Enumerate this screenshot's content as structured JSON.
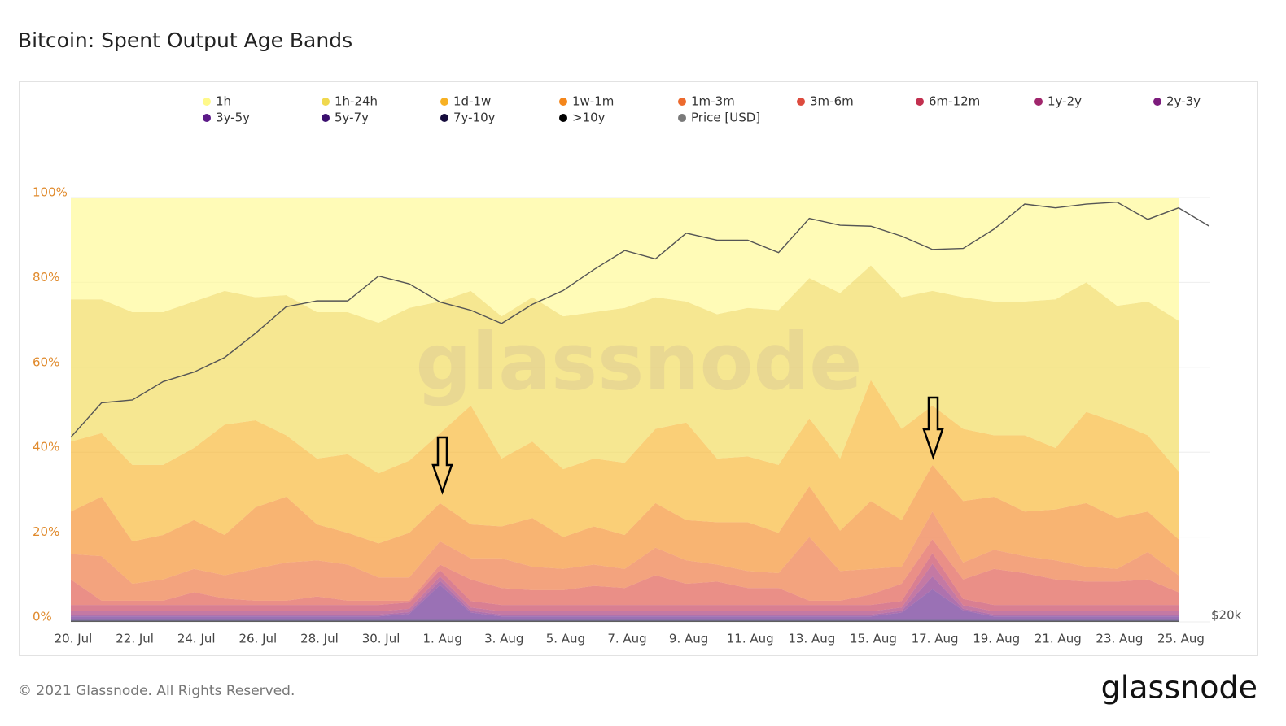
{
  "chart_data": {
    "type": "area",
    "stacked": true,
    "title": "Bitcoin: Spent Output Age Bands",
    "watermark": "glassnode",
    "footer": "© 2021 Glassnode. All Rights Reserved.",
    "brand": "glassnode",
    "categories": [
      "20. Jul",
      null,
      "22. Jul",
      null,
      "24. Jul",
      null,
      "26. Jul",
      null,
      "28. Jul",
      null,
      "30. Jul",
      null,
      "1. Aug",
      null,
      "3. Aug",
      null,
      "5. Aug",
      null,
      "7. Aug",
      null,
      "9. Aug",
      null,
      "11. Aug",
      null,
      "13. Aug",
      null,
      "15. Aug",
      null,
      "17. Aug",
      null,
      "19. Aug",
      null,
      "21. Aug",
      null,
      "23. Aug",
      null,
      "25. Aug",
      null
    ],
    "ylim": [
      0,
      100
    ],
    "yticks": [
      {
        "value": 0,
        "label": "0%"
      },
      {
        "value": 20,
        "label": "20%"
      },
      {
        "value": 40,
        "label": "40%"
      },
      {
        "value": 60,
        "label": "60%"
      },
      {
        "value": 80,
        "label": "80%"
      },
      {
        "value": 100,
        "label": "100%"
      }
    ],
    "y2lim": [
      20000,
      50000
    ],
    "y2log": true,
    "y2ticks": [
      {
        "value": 20000,
        "label": "$20k"
      }
    ],
    "grid": true,
    "series": [
      {
        "name": "1h",
        "color": "#fff98a",
        "values": [
          24,
          24,
          27,
          27,
          24.5,
          22,
          23.5,
          23,
          27,
          27,
          29.5,
          26,
          24.5,
          22,
          28,
          23.5,
          28,
          27,
          26,
          23.5,
          24.5,
          27.5,
          26,
          26.5,
          19,
          22.5,
          16,
          23.5,
          22,
          23.5,
          24.5,
          24.5,
          24,
          20,
          25.5,
          24.5,
          29,
          null
        ]
      },
      {
        "name": "1h-24h",
        "color": "#f0d84e",
        "values": [
          33.5,
          31.5,
          36,
          36,
          34.5,
          31.5,
          29,
          33,
          34.5,
          33.5,
          35.5,
          36,
          31,
          27,
          33.5,
          34,
          36,
          34.5,
          36.5,
          31,
          28.5,
          34,
          35,
          36.5,
          33,
          39,
          27,
          31,
          27,
          31,
          31.5,
          31.5,
          35,
          30.5,
          27.5,
          31.5,
          35.5,
          null
        ]
      },
      {
        "name": "1d-1w",
        "color": "#f7b124",
        "values": [
          16.5,
          15,
          18,
          16.5,
          17,
          26,
          20.5,
          14.5,
          15.5,
          18.5,
          16.5,
          17,
          16.5,
          28,
          16,
          18,
          16,
          16,
          17,
          17.5,
          23,
          15,
          15.5,
          16,
          16,
          17,
          28.5,
          21.5,
          14,
          17,
          14.5,
          18,
          14.5,
          21.5,
          22.5,
          18,
          16,
          null
        ]
      },
      {
        "name": "1w-1m",
        "color": "#f4861b",
        "values": [
          10,
          14,
          10,
          10.5,
          11.5,
          9.5,
          14.5,
          15.5,
          8.5,
          7.5,
          8,
          10.5,
          9,
          8,
          7.5,
          11.5,
          7.5,
          9,
          8,
          10.5,
          9.5,
          10,
          11.5,
          9.5,
          12,
          9.5,
          16,
          11,
          11,
          14.5,
          12.5,
          10.5,
          12,
          15,
          12,
          9.5,
          8.5,
          null
        ]
      },
      {
        "name": "1m-3m",
        "color": "#ec6a2e",
        "values": [
          6,
          10.5,
          4,
          5,
          5.5,
          5.5,
          7.5,
          9,
          8.5,
          8.5,
          5.5,
          5.5,
          5.5,
          5,
          7,
          5.5,
          5,
          5,
          4.5,
          6.5,
          5.5,
          4,
          4,
          3.5,
          15,
          7,
          6,
          4,
          6.5,
          4,
          4.5,
          4,
          4.5,
          3.5,
          3,
          6.5,
          4,
          null
        ]
      },
      {
        "name": "3m-6m",
        "color": "#dd4b3e",
        "values": [
          6,
          1,
          1,
          1,
          3,
          1.5,
          1,
          1,
          2,
          1,
          1,
          0.4,
          1.3,
          5.1,
          4,
          3.5,
          3.5,
          4.5,
          4,
          7,
          5,
          5.5,
          4,
          4,
          1,
          1,
          2.5,
          4.1,
          3.3,
          4.6,
          8.5,
          7.5,
          6,
          5.5,
          5.5,
          6,
          3,
          null
        ]
      },
      {
        "name": "6m-12m",
        "color": "#c2304f",
        "values": [
          1.5,
          1.5,
          1.5,
          1.5,
          1.5,
          1.5,
          1.5,
          1.5,
          1.5,
          1.5,
          1.5,
          1.5,
          1.5,
          1.5,
          1.5,
          1.5,
          1.5,
          1.5,
          1.5,
          1.5,
          1.5,
          1.5,
          1.5,
          1.5,
          1.5,
          1.5,
          1.5,
          1.5,
          2.5,
          1.5,
          1.5,
          1.5,
          1.5,
          1.5,
          1.5,
          1.5,
          1.5,
          null
        ]
      },
      {
        "name": "1y-2y",
        "color": "#a0266c",
        "values": [
          0.8,
          0.8,
          0.8,
          0.8,
          0.8,
          0.8,
          0.8,
          0.8,
          0.8,
          0.8,
          0.8,
          0.8,
          1,
          0.8,
          0.8,
          0.8,
          0.8,
          0.8,
          0.8,
          0.8,
          0.8,
          0.8,
          0.8,
          0.8,
          0.8,
          0.8,
          0.8,
          0.8,
          3,
          0.8,
          0.8,
          0.8,
          0.8,
          0.8,
          0.8,
          0.8,
          0.8,
          null
        ]
      },
      {
        "name": "2y-3y",
        "color": "#7c1c7c",
        "values": [
          0.4,
          0.4,
          0.4,
          0.4,
          0.4,
          0.4,
          0.4,
          0.4,
          0.4,
          0.4,
          0.4,
          0.4,
          1,
          0.4,
          0.4,
          0.4,
          0.4,
          0.4,
          0.4,
          0.4,
          0.4,
          0.4,
          0.4,
          0.4,
          0.4,
          0.4,
          0.4,
          0.4,
          3,
          0.4,
          0.4,
          0.4,
          0.4,
          0.4,
          0.4,
          0.4,
          0.4,
          null
        ]
      },
      {
        "name": "3y-5y",
        "color": "#5c1a88",
        "values": [
          0.6,
          0.6,
          0.6,
          0.6,
          0.6,
          0.6,
          0.6,
          0.6,
          0.6,
          0.6,
          0.6,
          1.2,
          8,
          1.5,
          0.6,
          0.6,
          0.6,
          0.6,
          0.6,
          0.6,
          0.6,
          0.6,
          0.6,
          0.6,
          0.6,
          0.6,
          0.6,
          1.5,
          7,
          2,
          0.6,
          0.6,
          0.6,
          0.6,
          0.6,
          0.6,
          0.6,
          null
        ]
      },
      {
        "name": "5y-7y",
        "color": "#3a0f6e",
        "values": [
          0.3,
          0.3,
          0.3,
          0.3,
          0.3,
          0.3,
          0.3,
          0.3,
          0.3,
          0.3,
          0.3,
          0.3,
          0.3,
          0.3,
          0.3,
          0.3,
          0.3,
          0.3,
          0.3,
          0.3,
          0.3,
          0.3,
          0.3,
          0.3,
          0.3,
          0.3,
          0.3,
          0.3,
          0.3,
          0.3,
          0.3,
          0.3,
          0.3,
          0.3,
          0.3,
          0.3,
          0.3,
          null
        ]
      },
      {
        "name": "7y-10y",
        "color": "#150c3c",
        "values": [
          0.2,
          0.2,
          0.2,
          0.2,
          0.2,
          0.2,
          0.2,
          0.2,
          0.2,
          0.2,
          0.2,
          0.2,
          0.2,
          0.2,
          0.2,
          0.2,
          0.2,
          0.2,
          0.2,
          0.2,
          0.2,
          0.2,
          0.2,
          0.2,
          0.2,
          0.2,
          0.2,
          0.2,
          0.2,
          0.2,
          0.2,
          0.2,
          0.2,
          0.2,
          0.2,
          0.2,
          0.2,
          null
        ]
      },
      {
        "name": ">10y",
        "color": "#000000",
        "values": [
          0.2,
          0.2,
          0.2,
          0.2,
          0.2,
          0.2,
          0.2,
          0.2,
          0.2,
          0.2,
          0.2,
          0.2,
          0.2,
          0.2,
          0.2,
          0.2,
          0.2,
          0.2,
          0.2,
          0.2,
          0.2,
          0.2,
          0.2,
          0.2,
          0.2,
          0.2,
          0.2,
          0.2,
          0.2,
          0.2,
          0.2,
          0.2,
          0.2,
          0.2,
          0.2,
          0.2,
          0.2,
          null
        ]
      },
      {
        "name": "Price [USD]",
        "color": "#7a7a7a",
        "type": "line",
        "axis": "y2",
        "values": [
          29800,
          32100,
          32300,
          33600,
          34300,
          35400,
          37300,
          39500,
          40000,
          40000,
          42200,
          41500,
          39900,
          39200,
          38100,
          39700,
          40900,
          42800,
          44600,
          43800,
          46300,
          45600,
          45600,
          44400,
          47800,
          47100,
          47000,
          46000,
          44700,
          44800,
          46700,
          49300,
          48900,
          49300,
          49500,
          47700,
          48900,
          47000
        ]
      }
    ]
  }
}
